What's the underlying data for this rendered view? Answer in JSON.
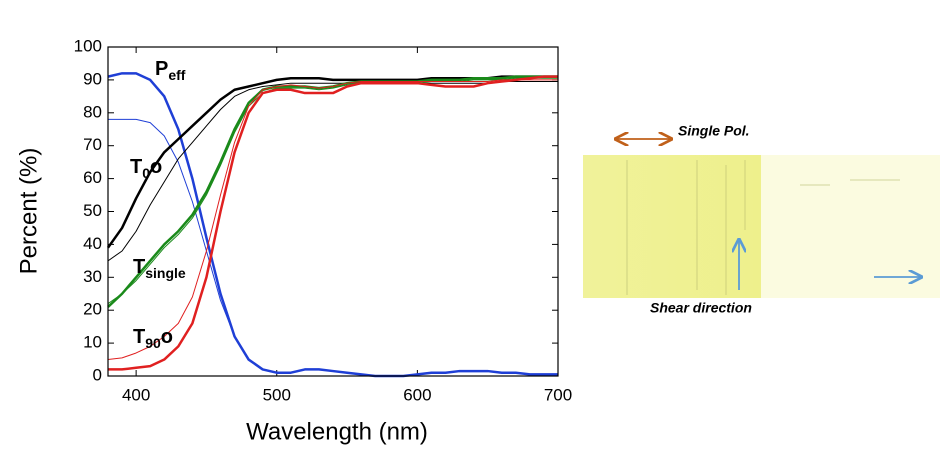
{
  "chart_data": {
    "type": "line",
    "x_label": "Wavelength (nm)",
    "y_label": "Percent (%)",
    "xlim": [
      380,
      700
    ],
    "xticks": [
      400,
      500,
      600,
      700
    ],
    "ylim": [
      0,
      100
    ],
    "yticks": [
      0,
      10,
      20,
      30,
      40,
      50,
      60,
      70,
      80,
      90,
      100
    ],
    "x": [
      380,
      390,
      400,
      410,
      420,
      430,
      440,
      450,
      460,
      470,
      480,
      490,
      500,
      510,
      520,
      530,
      540,
      550,
      560,
      570,
      580,
      590,
      600,
      610,
      620,
      630,
      640,
      650,
      660,
      670,
      680,
      690,
      700
    ],
    "series": [
      {
        "color": "#1f3fd6",
        "width": 1,
        "values": [
          78,
          78,
          78,
          77,
          73,
          65,
          53,
          38,
          23,
          12,
          5,
          2,
          1,
          1,
          2,
          2,
          1.5,
          1,
          0.5,
          0,
          0,
          0,
          0.5,
          1,
          1,
          1.5,
          1.5,
          1.5,
          1,
          1,
          0.5,
          0.5,
          0.5
        ]
      },
      {
        "color": "#1f3fd6",
        "width": 2.5,
        "values": [
          91,
          92,
          92,
          90,
          85,
          75,
          60,
          42,
          25,
          12,
          5,
          2,
          1,
          1,
          2,
          2,
          1.5,
          1,
          0.5,
          0,
          0,
          0,
          0.5,
          1,
          1,
          1.5,
          1.5,
          1.5,
          1,
          1,
          0.5,
          0.5,
          0.5
        ]
      },
      {
        "color": "#000000",
        "width": 1,
        "values": [
          35,
          38,
          44,
          52,
          59,
          66,
          71,
          76,
          81,
          85,
          87,
          88,
          88.5,
          89,
          89,
          89,
          89,
          89,
          89,
          89,
          89,
          89,
          89,
          89,
          89,
          89,
          89,
          89,
          89.5,
          89.5,
          89.5,
          89.5,
          89.5
        ]
      },
      {
        "color": "#000000",
        "width": 2.5,
        "values": [
          39,
          45,
          54,
          62,
          68,
          72,
          76,
          80,
          84,
          87,
          88,
          89,
          90,
          90.5,
          90.5,
          90.5,
          90,
          90,
          90,
          90,
          90,
          90,
          90,
          90.5,
          90.5,
          90.5,
          90.5,
          90.5,
          91,
          91,
          91,
          91,
          91
        ]
      },
      {
        "color": "#1a8a1a",
        "width": 1,
        "values": [
          22,
          25,
          29,
          34,
          39,
          43,
          48,
          55,
          64,
          74,
          82,
          86,
          87.5,
          87.5,
          87.5,
          87,
          87.5,
          88.5,
          89,
          89,
          89,
          89,
          89,
          89.5,
          89.5,
          89.5,
          90,
          90,
          90,
          90.5,
          90.5,
          90.5,
          90.5
        ]
      },
      {
        "color": "#1a8a1a",
        "width": 2.5,
        "values": [
          21,
          25,
          30,
          35,
          40,
          44,
          49,
          56,
          65,
          75,
          83,
          87,
          88,
          88,
          88,
          87.5,
          88,
          89,
          89.5,
          89.5,
          89.5,
          89.5,
          89.5,
          90,
          90,
          90,
          90.5,
          90.5,
          90.5,
          91,
          91,
          91,
          91
        ]
      },
      {
        "color": "#e02020",
        "width": 1,
        "values": [
          5,
          5.5,
          7,
          9,
          12,
          16,
          24,
          38,
          55,
          71,
          82,
          87,
          88,
          88.5,
          88,
          87.5,
          88,
          89,
          89.5,
          89.5,
          89.5,
          89.5,
          89.5,
          89.5,
          89.5,
          89.5,
          89.5,
          89.5,
          90,
          90,
          90,
          90,
          90
        ]
      },
      {
        "color": "#e02020",
        "width": 2.5,
        "values": [
          2,
          2,
          2.5,
          3,
          5,
          9,
          16,
          30,
          50,
          68,
          80,
          86,
          87,
          87,
          86,
          86,
          86,
          88,
          89,
          89,
          89,
          89,
          89,
          88.5,
          88,
          88,
          88,
          89,
          89.5,
          90,
          90.5,
          91,
          91
        ]
      }
    ],
    "annotations": [
      {
        "text": "P",
        "sub": "eff"
      },
      {
        "text": "T",
        "sub": "0",
        "suffix": "o"
      },
      {
        "text": "T",
        "sub": "single"
      },
      {
        "text": "T",
        "sub": "90",
        "suffix": "o"
      }
    ]
  },
  "image_panel": {
    "polarizer_label": "Single Pol.",
    "shear_label": "Shear direction"
  }
}
